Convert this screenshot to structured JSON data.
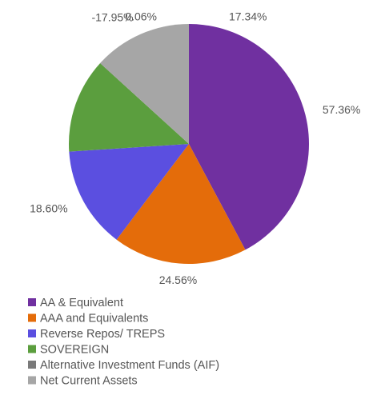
{
  "chart_data": {
    "type": "pie",
    "categories": [
      "AA & Equivalent",
      "AAA and Equivalents",
      "Reverse Repos/ TREPS",
      "SOVEREIGN",
      "Alternative Investment Funds (AIF)",
      "Net Current Assets"
    ],
    "values": [
      57.36,
      24.56,
      18.6,
      17.34,
      0.06,
      -17.95
    ],
    "value_labels": [
      "57.36%",
      "24.56%",
      "18.60%",
      "17.34%",
      "0.06%",
      "-17.95%"
    ],
    "colors": [
      "#7030a0",
      "#e46c0a",
      "#5b4fe0",
      "#5b9e3e",
      "#7a7a7a",
      "#a6a6a6"
    ],
    "legend": "bottom"
  }
}
